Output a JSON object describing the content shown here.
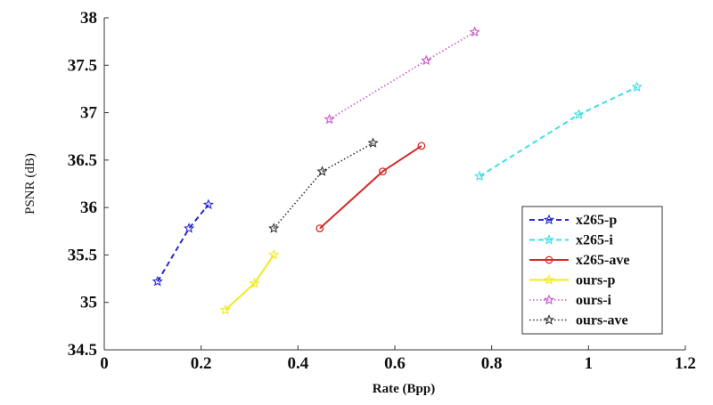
{
  "chart_data": {
    "type": "line",
    "title": "",
    "xlabel": "Rate (Bpp)",
    "ylabel": "PSNR (dB)",
    "xlim": [
      0,
      1.2
    ],
    "ylim": [
      34.5,
      38
    ],
    "x_ticks": [
      "0",
      "0.2",
      "0.4",
      "0.6",
      "0.8",
      "1",
      "1.2"
    ],
    "y_ticks": [
      "34.5",
      "35",
      "35.5",
      "36",
      "36.5",
      "37",
      "37.5",
      "38"
    ],
    "grid": false,
    "legend_position": "bottom-right",
    "series": [
      {
        "name": "x265-p",
        "color": "#2a2acd",
        "dash": "dashed",
        "marker": "star",
        "x": [
          0.11,
          0.175,
          0.215
        ],
        "y": [
          35.22,
          35.78,
          36.03
        ]
      },
      {
        "name": "x265-i",
        "color": "#3fe0e0",
        "dash": "dashed",
        "marker": "star",
        "x": [
          0.775,
          0.98,
          1.1
        ],
        "y": [
          36.33,
          36.98,
          37.27
        ]
      },
      {
        "name": "x265-ave",
        "color": "#d42a2a",
        "dash": "solid",
        "marker": "circle",
        "x": [
          0.445,
          0.575,
          0.655
        ],
        "y": [
          35.78,
          36.38,
          36.65
        ]
      },
      {
        "name": "ours-p",
        "color": "#f0ea1f",
        "dash": "solid",
        "marker": "star",
        "x": [
          0.25,
          0.31,
          0.35
        ],
        "y": [
          34.92,
          35.2,
          35.5
        ]
      },
      {
        "name": "ours-i",
        "color": "#cc55cc",
        "dash": "dotted",
        "marker": "star",
        "x": [
          0.465,
          0.665,
          0.765
        ],
        "y": [
          36.93,
          37.55,
          37.85
        ]
      },
      {
        "name": "ours-ave",
        "color": "#333333",
        "dash": "dotted",
        "marker": "star",
        "x": [
          0.35,
          0.45,
          0.555
        ],
        "y": [
          35.78,
          36.38,
          36.68
        ]
      }
    ]
  }
}
